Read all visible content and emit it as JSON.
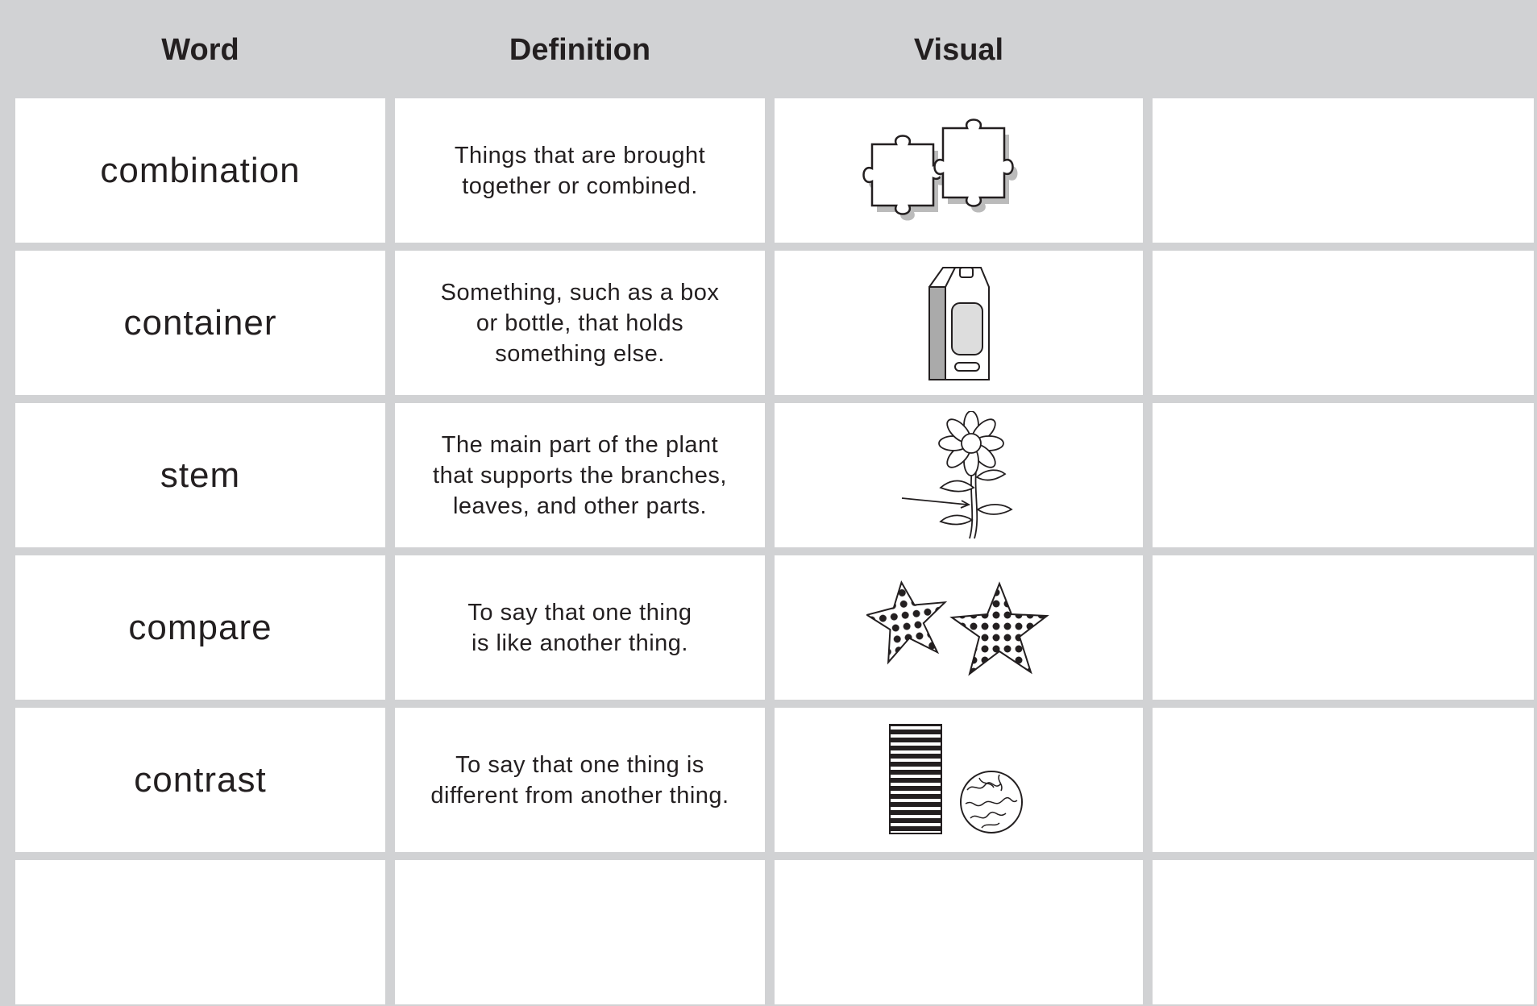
{
  "table": {
    "header": [
      "Word",
      "Definition",
      "Visual"
    ],
    "rows": [
      {
        "word": "combination",
        "definition": [
          "Things that are brought",
          "together or combined."
        ]
      },
      {
        "word": "container",
        "definition": [
          "Something, such as a box",
          "or bottle, that holds",
          "something else."
        ]
      },
      {
        "word": "stem",
        "definition": [
          "The main part of the plant",
          "that supports the branches,",
          "leaves, and other parts."
        ]
      },
      {
        "word": "compare",
        "definition": [
          "To say that one thing",
          "is like another thing."
        ]
      },
      {
        "word": "contrast",
        "definition": [
          "To say that one thing is",
          "different from another thing."
        ]
      }
    ]
  }
}
